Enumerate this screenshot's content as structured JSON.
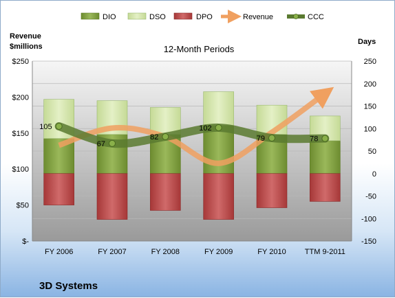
{
  "chart_data": {
    "type": "bar",
    "subtitle": "12-Month Periods",
    "left_axis_title": [
      "Revenue",
      "$millions"
    ],
    "right_axis_title": "Days",
    "company": "3D Systems",
    "categories": [
      "FY 2006",
      "FY 2007",
      "FY 2008",
      "FY 2009",
      "FY 2010",
      "TTM 9-2011"
    ],
    "left_ticks": [
      "$-",
      "$50",
      "$100",
      "$150",
      "$200",
      "$250"
    ],
    "right_ticks": [
      "-150",
      "-100",
      "-50",
      "0",
      "50",
      "100",
      "150",
      "200",
      "250"
    ],
    "left_ylim": [
      0,
      250
    ],
    "right_ylim": [
      -150,
      250
    ],
    "grid": true,
    "legend_position": "top",
    "series": [
      {
        "name": "DIO",
        "type": "stacked-bar",
        "color": "#7a9a3a",
        "values": [
          78,
          87,
          87,
          107,
          87,
          73
        ]
      },
      {
        "name": "DSO",
        "type": "stacked-bar",
        "color": "#d4e6a8",
        "values": [
          87,
          75,
          60,
          75,
          65,
          55
        ]
      },
      {
        "name": "DPO",
        "type": "negative-bar",
        "color": "#b84a4a",
        "values": [
          -70,
          -102,
          -82,
          -102,
          -76,
          -62
        ]
      },
      {
        "name": "Revenue",
        "type": "line",
        "color": "#f0a060",
        "values": [
          133,
          157,
          145,
          108,
          151,
          205
        ]
      },
      {
        "name": "CCC",
        "type": "line",
        "color": "#5a7a30",
        "values": [
          105,
          67,
          82,
          102,
          79,
          78
        ]
      }
    ],
    "data_labels": [
      "105",
      "67",
      "82",
      "102",
      "79",
      "78"
    ]
  }
}
